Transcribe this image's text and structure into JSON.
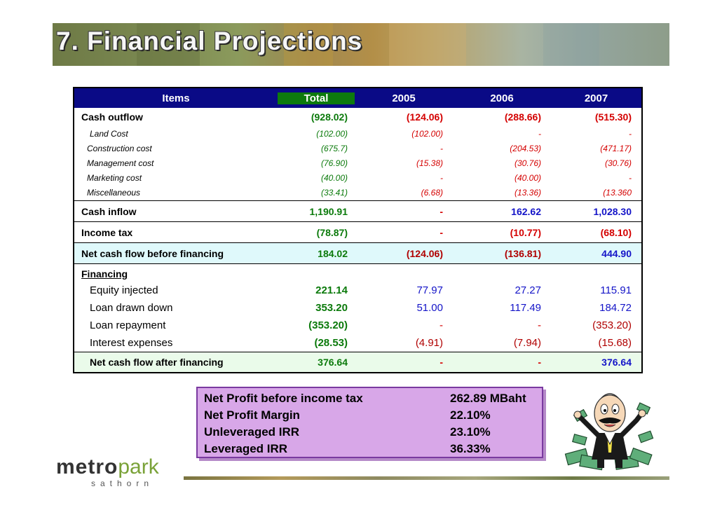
{
  "title": "7. Financial Projections",
  "table": {
    "headers": [
      "Items",
      "Total",
      "2005",
      "2006",
      "2007"
    ],
    "cash_outflow": {
      "label": "Cash outflow",
      "values": [
        "(928.02)",
        "(124.06)",
        "(288.66)",
        "(515.30)"
      ]
    },
    "outflow_items": [
      {
        "label": "Land Cost",
        "values": [
          "(102.00)",
          "(102.00)",
          "-",
          "-"
        ]
      },
      {
        "label": "Construction cost",
        "values": [
          "(675.7)",
          "-",
          "(204.53)",
          "(471.17)"
        ]
      },
      {
        "label": "Management cost",
        "values": [
          "(76.90)",
          "(15.38)",
          "(30.76)",
          "(30.76)"
        ]
      },
      {
        "label": "Marketing cost",
        "values": [
          "(40.00)",
          "-",
          "(40.00)",
          "-"
        ]
      },
      {
        "label": "Miscellaneous",
        "values": [
          "(33.41)",
          "(6.68)",
          "(13.36)",
          "(13.360"
        ]
      }
    ],
    "cash_inflow": {
      "label": "Cash inflow",
      "values": [
        "1,190.91",
        "-",
        "162.62",
        "1,028.30"
      ]
    },
    "income_tax": {
      "label": "Income tax",
      "values": [
        "(78.87)",
        "-",
        "(10.77)",
        "(68.10)"
      ]
    },
    "net_before": {
      "label": "Net cash flow before financing",
      "values": [
        "184.02",
        "(124.06)",
        "(136.81)",
        "444.90"
      ]
    },
    "financing_label": "Financing",
    "financing_items": [
      {
        "label": "Equity injected",
        "values": [
          "221.14",
          "77.97",
          "27.27",
          "115.91"
        ]
      },
      {
        "label": "Loan drawn down",
        "values": [
          "353.20",
          "51.00",
          "117.49",
          "184.72"
        ]
      },
      {
        "label": "Loan repayment",
        "values": [
          "(353.20)",
          "-",
          "-",
          "(353.20)"
        ]
      },
      {
        "label": "Interest expenses",
        "values": [
          "(28.53)",
          "(4.91)",
          "(7.94)",
          "(15.68)"
        ]
      }
    ],
    "net_after": {
      "label": "Net cash flow after financing",
      "values": [
        "376.64",
        "-",
        "-",
        "376.64"
      ]
    }
  },
  "summary": [
    {
      "label": "Net Profit before income tax",
      "value": "262.89 MBaht"
    },
    {
      "label": "Net Profit Margin",
      "value": "22.10%"
    },
    {
      "label": "Unleveraged IRR",
      "value": "23.10%"
    },
    {
      "label": "Leveraged IRR",
      "value": "36.33%"
    }
  ],
  "logo": {
    "metro": "metro",
    "park": "park",
    "sub": "sathorn"
  },
  "colors": {
    "header_bg": "#0a0a86",
    "total_header_bg": "#0d7a0d",
    "summary_bg": "#d8a7e8"
  }
}
